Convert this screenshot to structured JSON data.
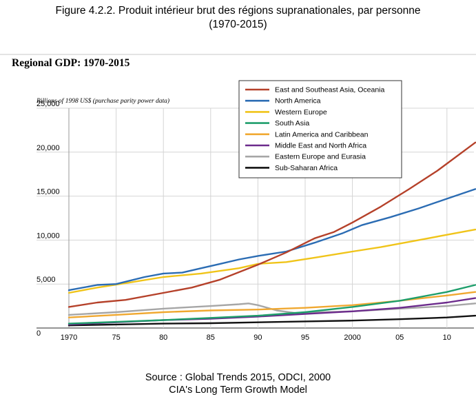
{
  "figure": {
    "title_line1": "Figure 4.2.2. Produit intérieur brut des régions supranationales, par personne",
    "title_line2": "(1970-2015)"
  },
  "source": {
    "line1": "Source : Global Trends 2015, ODCI, 2000",
    "line2": "CIA's Long Term Growth Model"
  },
  "chart_data": {
    "type": "line",
    "title": "Regional GDP: 1970-2015",
    "ylabel": "Billions of 1998 US$ (purchase parity power data)",
    "xlabel": "",
    "xlim": [
      1970,
      2013
    ],
    "ylim": [
      0,
      25000
    ],
    "grid": true,
    "legend_position": "top-right",
    "x_ticks": [
      {
        "value": 1970,
        "label": "1970"
      },
      {
        "value": 1975,
        "label": "75"
      },
      {
        "value": 1980,
        "label": "80"
      },
      {
        "value": 1985,
        "label": "85"
      },
      {
        "value": 1990,
        "label": "90"
      },
      {
        "value": 1995,
        "label": "95"
      },
      {
        "value": 2000,
        "label": "2000"
      },
      {
        "value": 2005,
        "label": "05"
      },
      {
        "value": 2010,
        "label": "10"
      }
    ],
    "y_ticks": [
      {
        "value": 0,
        "label": "0"
      },
      {
        "value": 5000,
        "label": "5,000"
      },
      {
        "value": 10000,
        "label": "10,000"
      },
      {
        "value": 15000,
        "label": "15,000"
      },
      {
        "value": 20000,
        "label": "20,000"
      },
      {
        "value": 25000,
        "label": "25,000"
      }
    ],
    "series": [
      {
        "name": "East and Southeast Asia, Oceania",
        "color": "#b5412a",
        "x": [
          1970,
          1973,
          1976,
          1980,
          1983,
          1986,
          1990,
          1993,
          1996,
          1998,
          2000,
          2003,
          2006,
          2009,
          2013
        ],
        "y": [
          2400,
          2900,
          3200,
          4000,
          4600,
          5500,
          7200,
          8600,
          10200,
          10900,
          12000,
          13800,
          15800,
          17900,
          21100
        ]
      },
      {
        "name": "North America",
        "color": "#2b6cb3",
        "x": [
          1970,
          1973,
          1975,
          1978,
          1980,
          1982,
          1984,
          1986,
          1988,
          1990,
          1993,
          1996,
          1999,
          2001,
          2004,
          2007,
          2010,
          2013
        ],
        "y": [
          4300,
          4900,
          5000,
          5800,
          6200,
          6300,
          6800,
          7300,
          7800,
          8200,
          8700,
          9700,
          10800,
          11700,
          12600,
          13600,
          14700,
          15800
        ]
      },
      {
        "name": "Western Europe",
        "color": "#f0c419",
        "x": [
          1970,
          1973,
          1976,
          1980,
          1984,
          1988,
          1990,
          1993,
          1996,
          2000,
          2003,
          2007,
          2010,
          2013
        ],
        "y": [
          4000,
          4600,
          5100,
          5800,
          6200,
          6800,
          7300,
          7500,
          8000,
          8700,
          9200,
          10000,
          10600,
          11200
        ]
      },
      {
        "name": "South Asia",
        "color": "#1e9e6b",
        "x": [
          1970,
          1975,
          1980,
          1985,
          1990,
          1995,
          2000,
          2005,
          2010,
          2013
        ],
        "y": [
          500,
          700,
          900,
          1150,
          1400,
          1800,
          2400,
          3100,
          4100,
          4900
        ]
      },
      {
        "name": "Latin America and Caribbean",
        "color": "#f0a830",
        "x": [
          1970,
          1975,
          1980,
          1985,
          1990,
          1995,
          2000,
          2005,
          2010,
          2013
        ],
        "y": [
          1200,
          1500,
          1800,
          2000,
          2100,
          2300,
          2600,
          3100,
          3700,
          4100
        ]
      },
      {
        "name": "Middle East and North Africa",
        "color": "#6c2b8c",
        "x": [
          1970,
          1975,
          1980,
          1985,
          1990,
          1995,
          2000,
          2005,
          2010,
          2013
        ],
        "y": [
          400,
          650,
          900,
          1050,
          1300,
          1600,
          1900,
          2300,
          2900,
          3400
        ]
      },
      {
        "name": "Eastern Europe and Eurasia",
        "color": "#a6a6a6",
        "x": [
          1970,
          1975,
          1980,
          1985,
          1988,
          1989,
          1990,
          1992,
          1994,
          1997,
          2000,
          2005,
          2010,
          2013
        ],
        "y": [
          1500,
          1800,
          2200,
          2500,
          2700,
          2800,
          2600,
          2000,
          1700,
          1800,
          1900,
          2200,
          2500,
          2800
        ]
      },
      {
        "name": "Sub-Saharan Africa",
        "color": "#111111",
        "x": [
          1970,
          1975,
          1980,
          1985,
          1990,
          1995,
          2000,
          2005,
          2010,
          2013
        ],
        "y": [
          300,
          400,
          500,
          550,
          650,
          750,
          850,
          1000,
          1200,
          1400
        ]
      }
    ]
  }
}
